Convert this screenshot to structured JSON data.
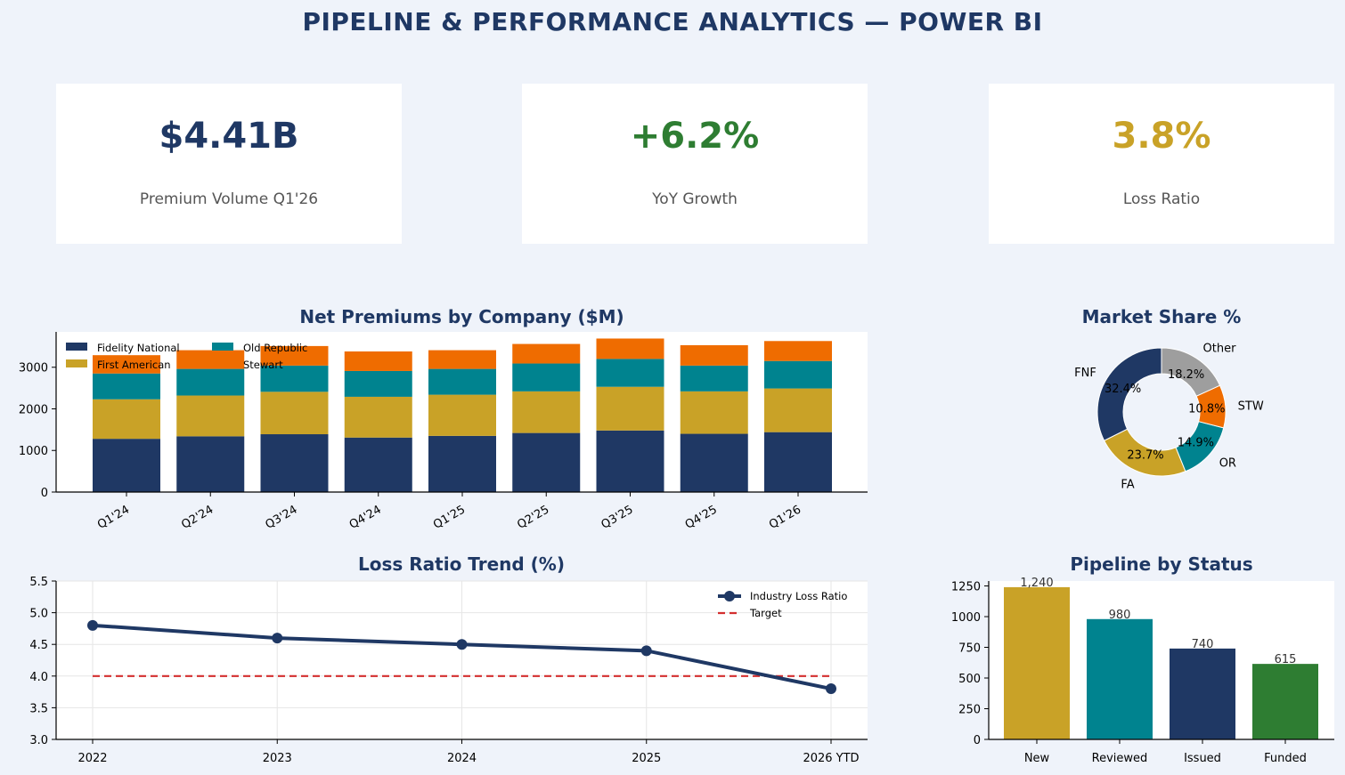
{
  "title": "PIPELINE & PERFORMANCE ANALYTICS — POWER BI",
  "kpis": [
    {
      "value": "$4.41B",
      "label": "Premium Volume Q1'26",
      "color": "#1f3864"
    },
    {
      "value": "+6.2%",
      "label": "YoY Growth",
      "color": "#2e7d32"
    },
    {
      "value": "3.8%",
      "label": "Loss Ratio",
      "color": "#c9a227"
    }
  ],
  "colors": {
    "navy": "#1f3864",
    "gold": "#c9a227",
    "teal": "#00838f",
    "orange": "#ef6c00",
    "gray": "#9e9e9e",
    "green": "#2e7d32",
    "red": "#d32f2f"
  },
  "chart_data": [
    {
      "type": "bar",
      "stacked": true,
      "title": "Net Premiums by Company ($M)",
      "categories": [
        "Q1'24",
        "Q2'24",
        "Q3'24",
        "Q4'24",
        "Q1'25",
        "Q2'25",
        "Q3'25",
        "Q4'25",
        "Q1'26"
      ],
      "series": [
        {
          "name": "Fidelity National",
          "color": "#1f3864",
          "values": [
            1280,
            1340,
            1390,
            1310,
            1350,
            1420,
            1480,
            1400,
            1440
          ]
        },
        {
          "name": "First American",
          "color": "#c9a227",
          "values": [
            950,
            980,
            1020,
            980,
            990,
            1000,
            1050,
            1020,
            1050
          ]
        },
        {
          "name": "Old Republic",
          "color": "#00838f",
          "values": [
            620,
            640,
            630,
            620,
            620,
            670,
            670,
            620,
            660
          ]
        },
        {
          "name": "Stewart",
          "color": "#ef6c00",
          "values": [
            440,
            450,
            470,
            470,
            450,
            470,
            490,
            490,
            480
          ]
        }
      ],
      "yticks": [
        0,
        1000,
        2000,
        3000
      ],
      "ylim": [
        0,
        3850
      ],
      "legend": "top-left"
    },
    {
      "type": "pie",
      "donut": true,
      "title": "Market Share %",
      "slices": [
        {
          "label": "FNF",
          "value": 32.4,
          "text": "32.4%",
          "color": "#1f3864"
        },
        {
          "label": "FA",
          "value": 23.7,
          "text": "23.7%",
          "color": "#c9a227"
        },
        {
          "label": "OR",
          "value": 14.9,
          "text": "14.9%",
          "color": "#00838f"
        },
        {
          "label": "STW",
          "value": 10.8,
          "text": "10.8%",
          "color": "#ef6c00"
        },
        {
          "label": "Other",
          "value": 18.2,
          "text": "18.2%",
          "color": "#9e9e9e"
        }
      ]
    },
    {
      "type": "line",
      "title": "Loss Ratio Trend (%)",
      "x": [
        "2022",
        "2023",
        "2024",
        "2025",
        "2026 YTD"
      ],
      "series": [
        {
          "name": "Industry Loss Ratio",
          "color": "#1f3864",
          "values": [
            4.8,
            4.6,
            4.5,
            4.4,
            3.8
          ]
        },
        {
          "name": "Target",
          "color": "#d32f2f",
          "values": [
            4.0,
            4.0,
            4.0,
            4.0,
            4.0
          ],
          "dashed": true
        }
      ],
      "yticks": [
        "3.0",
        "3.5",
        "4.0",
        "4.5",
        "5.0",
        "5.5"
      ],
      "ylim": [
        3.0,
        5.5
      ],
      "grid": true,
      "legend": "top-right"
    },
    {
      "type": "bar",
      "title": "Pipeline by Status",
      "categories": [
        "New",
        "Reviewed",
        "Issued",
        "Funded"
      ],
      "values": [
        1240,
        980,
        740,
        615
      ],
      "value_labels": [
        "1,240",
        "980",
        "740",
        "615"
      ],
      "colors": [
        "#c9a227",
        "#00838f",
        "#1f3864",
        "#2e7d32"
      ],
      "yticks": [
        0,
        250,
        500,
        750,
        1000,
        1250
      ],
      "ylim": [
        0,
        1290
      ]
    }
  ]
}
